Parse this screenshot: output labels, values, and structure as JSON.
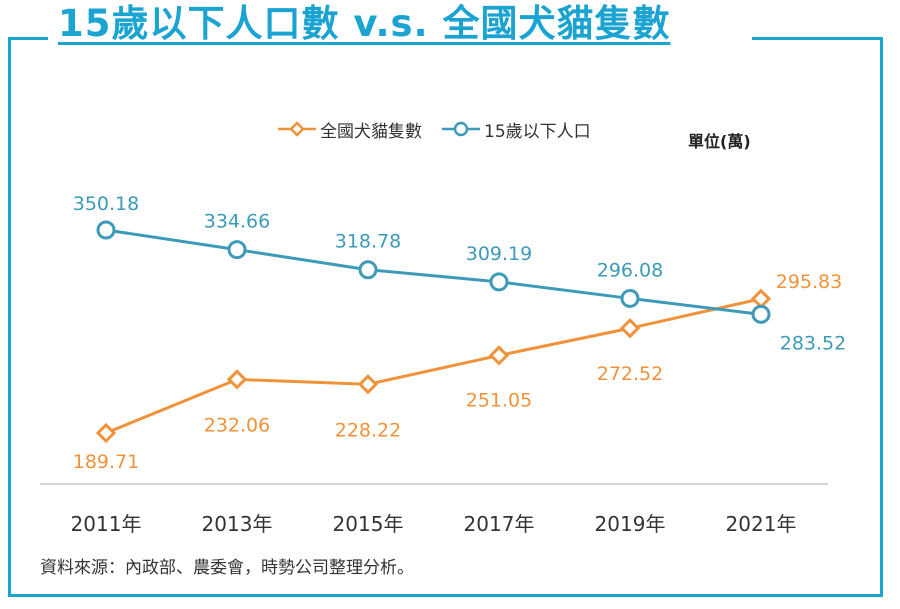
{
  "title": "15歲以下人口數 v.s. 全國犬貓隻數",
  "unit_label": "單位(萬)",
  "source": "資料來源：內政部、農委會，時勢公司整理分析。",
  "colors": {
    "frame": "#1ba3d2",
    "pets": "#f0923a",
    "children": "#3d9ab8"
  },
  "chart_data": {
    "type": "line",
    "categories": [
      "2011年",
      "2013年",
      "2015年",
      "2017年",
      "2019年",
      "2021年"
    ],
    "series": [
      {
        "name": "全國犬貓隻數",
        "marker": "diamond",
        "color": "#f0923a",
        "values": [
          189.71,
          232.06,
          228.22,
          251.05,
          272.52,
          295.83
        ],
        "labels": [
          "189.71",
          "232.06",
          "228.22",
          "251.05",
          "272.52",
          "295.83"
        ]
      },
      {
        "name": "15歲以下人口",
        "marker": "circle",
        "color": "#3d9ab8",
        "values": [
          350.18,
          334.66,
          318.78,
          309.19,
          296.08,
          283.52
        ],
        "labels": [
          "350.18",
          "334.66",
          "318.78",
          "309.19",
          "296.08",
          "283.52"
        ]
      }
    ],
    "grid": false,
    "legend_position": "top"
  }
}
